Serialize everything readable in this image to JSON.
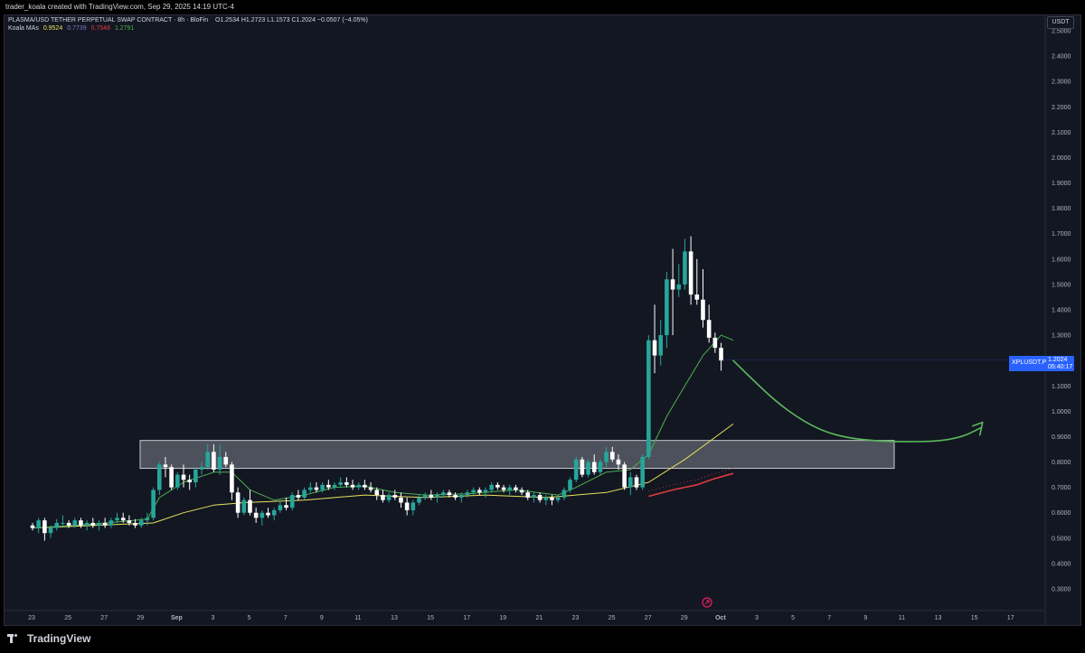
{
  "credit_text": "trader_koala created with TradingView.com, Sep 29, 2025 14:19 UTC-4",
  "symbol_title": "PLASMA/USD TETHER PERPETUAL SWAP CONTRACT · 8h · BloFin",
  "ohlc": {
    "open": "O1.2534",
    "high": "H1.2723",
    "low": "L1.1573",
    "close": "C1.2024",
    "change": "−0.0507 (−4.05%)"
  },
  "indicator": {
    "name": "Koala MAs",
    "values": [
      {
        "value": "0.9524",
        "color": "#e8e35c"
      },
      {
        "value": "0.7739",
        "color": "#7e7ac8"
      },
      {
        "value": "0.7548",
        "color": "#e03a3e"
      },
      {
        "value": "1.2791",
        "color": "#4caf50"
      }
    ]
  },
  "currency_label": "USDT",
  "last_price_tag": {
    "symbol": "XPLUSDT.P",
    "price": "1.2024",
    "countdown": "05:40:17",
    "color": "#2962ff"
  },
  "brand": "TradingView",
  "colors": {
    "up": "#26a69a",
    "down": "#ffffff",
    "zone": "#9598a1",
    "ma_fast": "#4caf50",
    "ma_slow": "#e8e35c",
    "ma_red": "#e03a3e",
    "projection": "#5cb85c",
    "background": "#131722"
  },
  "chart_data": {
    "type": "candlestick",
    "timeframe": "8h",
    "y_ticks": [
      "2.5000",
      "2.4000",
      "2.3000",
      "2.2000",
      "2.1000",
      "2.0000",
      "1.9000",
      "1.8000",
      "1.7000",
      "1.6000",
      "1.5000",
      "1.4000",
      "1.3000",
      "1.2000",
      "1.1000",
      "1.0000",
      "0.9000",
      "0.8000",
      "0.7000",
      "0.6000",
      "0.5000",
      "0.4000",
      "0.3000"
    ],
    "y_range": [
      0.25,
      2.52
    ],
    "x_ticks": [
      "23",
      "25",
      "27",
      "29",
      "Sep",
      "3",
      "5",
      "7",
      "9",
      "11",
      "13",
      "15",
      "17",
      "19",
      "21",
      "23",
      "25",
      "27",
      "29",
      "Oct",
      "3",
      "5",
      "7",
      "9",
      "11",
      "13",
      "15",
      "17"
    ],
    "x_range_days": [
      "Aug 22",
      "Oct 18"
    ],
    "candles": [
      [
        0.55,
        0.56,
        0.53,
        0.54
      ],
      [
        0.54,
        0.58,
        0.52,
        0.57
      ],
      [
        0.57,
        0.58,
        0.49,
        0.52
      ],
      [
        0.52,
        0.55,
        0.5,
        0.54
      ],
      [
        0.54,
        0.575,
        0.53,
        0.56
      ],
      [
        0.56,
        0.59,
        0.55,
        0.56
      ],
      [
        0.56,
        0.57,
        0.54,
        0.55
      ],
      [
        0.55,
        0.58,
        0.54,
        0.57
      ],
      [
        0.57,
        0.58,
        0.54,
        0.55
      ],
      [
        0.55,
        0.57,
        0.53,
        0.56
      ],
      [
        0.56,
        0.58,
        0.54,
        0.55
      ],
      [
        0.55,
        0.57,
        0.53,
        0.56
      ],
      [
        0.56,
        0.58,
        0.54,
        0.55
      ],
      [
        0.55,
        0.58,
        0.54,
        0.57
      ],
      [
        0.57,
        0.6,
        0.56,
        0.58
      ],
      [
        0.58,
        0.6,
        0.56,
        0.57
      ],
      [
        0.57,
        0.59,
        0.55,
        0.56
      ],
      [
        0.56,
        0.575,
        0.54,
        0.55
      ],
      [
        0.55,
        0.58,
        0.54,
        0.57
      ],
      [
        0.57,
        0.6,
        0.55,
        0.58
      ],
      [
        0.58,
        0.7,
        0.57,
        0.69
      ],
      [
        0.69,
        0.8,
        0.67,
        0.79
      ],
      [
        0.79,
        0.82,
        0.74,
        0.78
      ],
      [
        0.78,
        0.79,
        0.69,
        0.7
      ],
      [
        0.7,
        0.76,
        0.69,
        0.75
      ],
      [
        0.75,
        0.79,
        0.7,
        0.73
      ],
      [
        0.73,
        0.75,
        0.69,
        0.72
      ],
      [
        0.72,
        0.78,
        0.7,
        0.77
      ],
      [
        0.77,
        0.8,
        0.75,
        0.78
      ],
      [
        0.78,
        0.87,
        0.77,
        0.84
      ],
      [
        0.84,
        0.87,
        0.76,
        0.77
      ],
      [
        0.77,
        0.87,
        0.75,
        0.82
      ],
      [
        0.82,
        0.84,
        0.78,
        0.79
      ],
      [
        0.79,
        0.8,
        0.65,
        0.68
      ],
      [
        0.68,
        0.7,
        0.58,
        0.6
      ],
      [
        0.6,
        0.66,
        0.59,
        0.65
      ],
      [
        0.65,
        0.69,
        0.59,
        0.6
      ],
      [
        0.6,
        0.62,
        0.56,
        0.58
      ],
      [
        0.58,
        0.61,
        0.55,
        0.6
      ],
      [
        0.6,
        0.62,
        0.58,
        0.59
      ],
      [
        0.59,
        0.62,
        0.57,
        0.61
      ],
      [
        0.61,
        0.65,
        0.6,
        0.63
      ],
      [
        0.63,
        0.66,
        0.61,
        0.62
      ],
      [
        0.62,
        0.68,
        0.61,
        0.67
      ],
      [
        0.67,
        0.69,
        0.65,
        0.66
      ],
      [
        0.66,
        0.7,
        0.65,
        0.69
      ],
      [
        0.69,
        0.72,
        0.68,
        0.7
      ],
      [
        0.7,
        0.72,
        0.68,
        0.69
      ],
      [
        0.69,
        0.72,
        0.68,
        0.71
      ],
      [
        0.71,
        0.73,
        0.69,
        0.7
      ],
      [
        0.7,
        0.72,
        0.69,
        0.71
      ],
      [
        0.71,
        0.74,
        0.7,
        0.72
      ],
      [
        0.72,
        0.74,
        0.7,
        0.71
      ],
      [
        0.71,
        0.73,
        0.69,
        0.7
      ],
      [
        0.7,
        0.72,
        0.69,
        0.71
      ],
      [
        0.71,
        0.73,
        0.69,
        0.7
      ],
      [
        0.7,
        0.72,
        0.68,
        0.69
      ],
      [
        0.69,
        0.7,
        0.65,
        0.67
      ],
      [
        0.67,
        0.69,
        0.64,
        0.65
      ],
      [
        0.65,
        0.68,
        0.64,
        0.67
      ],
      [
        0.67,
        0.69,
        0.65,
        0.66
      ],
      [
        0.66,
        0.68,
        0.62,
        0.64
      ],
      [
        0.64,
        0.66,
        0.59,
        0.61
      ],
      [
        0.61,
        0.65,
        0.59,
        0.64
      ],
      [
        0.64,
        0.67,
        0.63,
        0.66
      ],
      [
        0.66,
        0.68,
        0.65,
        0.67
      ],
      [
        0.67,
        0.69,
        0.65,
        0.66
      ],
      [
        0.66,
        0.68,
        0.64,
        0.67
      ],
      [
        0.67,
        0.69,
        0.66,
        0.68
      ],
      [
        0.68,
        0.69,
        0.66,
        0.67
      ],
      [
        0.67,
        0.68,
        0.65,
        0.66
      ],
      [
        0.66,
        0.68,
        0.64,
        0.67
      ],
      [
        0.67,
        0.69,
        0.66,
        0.68
      ],
      [
        0.68,
        0.7,
        0.67,
        0.69
      ],
      [
        0.69,
        0.7,
        0.67,
        0.68
      ],
      [
        0.68,
        0.7,
        0.66,
        0.69
      ],
      [
        0.69,
        0.72,
        0.68,
        0.71
      ],
      [
        0.71,
        0.72,
        0.69,
        0.7
      ],
      [
        0.7,
        0.71,
        0.68,
        0.69
      ],
      [
        0.69,
        0.71,
        0.67,
        0.7
      ],
      [
        0.7,
        0.71,
        0.68,
        0.69
      ],
      [
        0.69,
        0.7,
        0.67,
        0.68
      ],
      [
        0.68,
        0.69,
        0.65,
        0.66
      ],
      [
        0.66,
        0.68,
        0.64,
        0.67
      ],
      [
        0.67,
        0.68,
        0.64,
        0.65
      ],
      [
        0.65,
        0.67,
        0.63,
        0.66
      ],
      [
        0.66,
        0.67,
        0.63,
        0.65
      ],
      [
        0.65,
        0.67,
        0.64,
        0.66
      ],
      [
        0.66,
        0.7,
        0.65,
        0.69
      ],
      [
        0.69,
        0.74,
        0.68,
        0.73
      ],
      [
        0.73,
        0.82,
        0.72,
        0.81
      ],
      [
        0.81,
        0.82,
        0.74,
        0.75
      ],
      [
        0.75,
        0.81,
        0.74,
        0.8
      ],
      [
        0.8,
        0.83,
        0.75,
        0.76
      ],
      [
        0.76,
        0.81,
        0.75,
        0.8
      ],
      [
        0.8,
        0.86,
        0.78,
        0.84
      ],
      [
        0.84,
        0.86,
        0.8,
        0.81
      ],
      [
        0.81,
        0.83,
        0.77,
        0.79
      ],
      [
        0.79,
        0.8,
        0.69,
        0.7
      ],
      [
        0.7,
        0.76,
        0.67,
        0.74
      ],
      [
        0.74,
        0.75,
        0.69,
        0.7
      ],
      [
        0.7,
        0.83,
        0.69,
        0.82
      ],
      [
        0.82,
        1.3,
        0.81,
        1.28
      ],
      [
        1.28,
        1.42,
        1.15,
        1.22
      ],
      [
        1.22,
        1.36,
        1.18,
        1.3
      ],
      [
        1.3,
        1.55,
        1.25,
        1.52
      ],
      [
        1.52,
        1.64,
        1.3,
        1.48
      ],
      [
        1.48,
        1.58,
        1.45,
        1.5
      ],
      [
        1.5,
        1.68,
        1.48,
        1.63
      ],
      [
        1.63,
        1.69,
        1.42,
        1.46
      ],
      [
        1.46,
        1.6,
        1.42,
        1.44
      ],
      [
        1.44,
        1.56,
        1.33,
        1.36
      ],
      [
        1.36,
        1.42,
        1.27,
        1.29
      ],
      [
        1.29,
        1.31,
        1.23,
        1.25
      ],
      [
        1.25,
        1.27,
        1.16,
        1.2
      ]
    ],
    "ma_fast": [
      [
        0,
        0.54
      ],
      [
        10,
        0.555
      ],
      [
        19,
        0.575
      ],
      [
        21,
        0.66
      ],
      [
        25,
        0.72
      ],
      [
        30,
        0.76
      ],
      [
        33,
        0.76
      ],
      [
        36,
        0.69
      ],
      [
        40,
        0.65
      ],
      [
        45,
        0.67
      ],
      [
        50,
        0.7
      ],
      [
        55,
        0.705
      ],
      [
        60,
        0.68
      ],
      [
        65,
        0.67
      ],
      [
        72,
        0.675
      ],
      [
        80,
        0.69
      ],
      [
        87,
        0.67
      ],
      [
        90,
        0.7
      ],
      [
        95,
        0.76
      ],
      [
        99,
        0.77
      ],
      [
        102,
        0.83
      ],
      [
        105,
        0.98
      ],
      [
        108,
        1.1
      ],
      [
        111,
        1.22
      ],
      [
        114,
        1.3
      ],
      [
        116,
        1.28
      ]
    ],
    "ma_slow": [
      [
        0,
        0.54
      ],
      [
        20,
        0.56
      ],
      [
        25,
        0.6
      ],
      [
        30,
        0.63
      ],
      [
        35,
        0.64
      ],
      [
        45,
        0.65
      ],
      [
        55,
        0.67
      ],
      [
        65,
        0.66
      ],
      [
        75,
        0.67
      ],
      [
        85,
        0.66
      ],
      [
        95,
        0.68
      ],
      [
        102,
        0.72
      ],
      [
        108,
        0.81
      ],
      [
        112,
        0.88
      ],
      [
        116,
        0.95
      ]
    ],
    "ma_red": [
      [
        102,
        0.665
      ],
      [
        106,
        0.69
      ],
      [
        110,
        0.71
      ],
      [
        113,
        0.735
      ],
      [
        116,
        0.755
      ]
    ],
    "demand_zone": {
      "low": 0.775,
      "high": 0.885,
      "from_index": 19,
      "to_index": 145
    },
    "projection": [
      [
        116,
        1.2
      ],
      [
        119,
        1.13
      ],
      [
        123,
        1.04
      ],
      [
        127,
        0.97
      ],
      [
        131,
        0.92
      ],
      [
        135,
        0.895
      ],
      [
        140,
        0.882
      ],
      [
        145,
        0.88
      ],
      [
        150,
        0.882
      ],
      [
        153,
        0.895
      ],
      [
        155,
        0.91
      ],
      [
        157,
        0.935
      ]
    ]
  }
}
